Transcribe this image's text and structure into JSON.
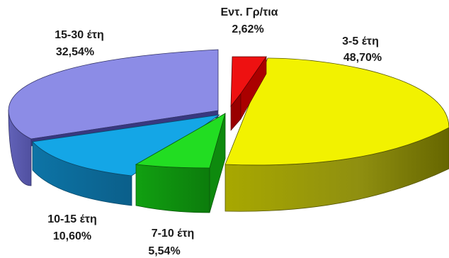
{
  "chart_data": {
    "type": "pie",
    "title": "",
    "slices": [
      {
        "label": "Εντ. Γρ/τια",
        "value_label": "2,62%",
        "value": 2.62,
        "color": "#ee1111"
      },
      {
        "label": "3-5 έτη",
        "value_label": "48,70%",
        "value": 48.7,
        "color": "#f2f200"
      },
      {
        "label": "7-10 έτη",
        "value_label": "5,54%",
        "value": 5.54,
        "color": "#22dd22"
      },
      {
        "label": "10-15 έτη",
        "value_label": "10,60%",
        "value": 10.6,
        "color": "#14a6e6"
      },
      {
        "label": "15-30 έτη",
        "value_label": "32,54%",
        "value": 32.54,
        "color": "#8c8ce6"
      }
    ],
    "style": "3d-exploded"
  }
}
